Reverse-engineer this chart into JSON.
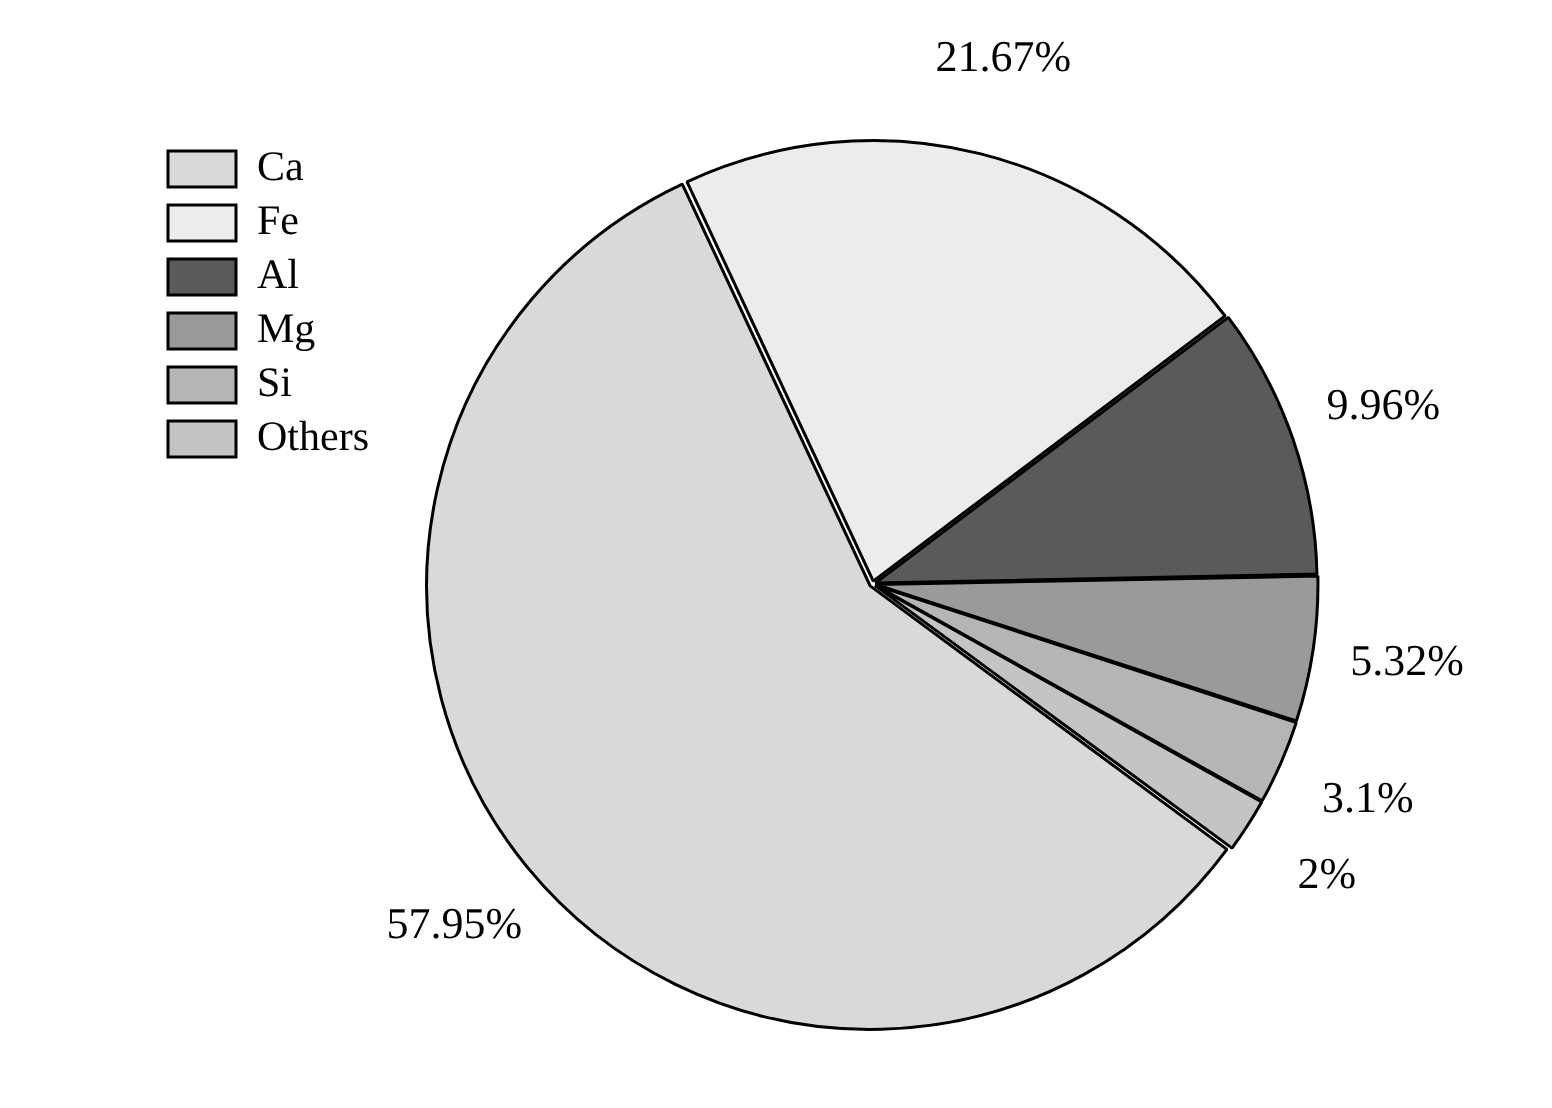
{
  "chart_data": {
    "type": "pie",
    "categories": [
      "Ca",
      "Fe",
      "Al",
      "Mg",
      "Si",
      "Others"
    ],
    "values": [
      57.95,
      21.67,
      9.96,
      5.32,
      3.1,
      2
    ],
    "colors": [
      "#d9d9d9",
      "#ececec",
      "#5a5a5a",
      "#9a9a9a",
      "#b5b5b5",
      "#c4c4c4"
    ],
    "value_labels": [
      "57.95%",
      "21.67%",
      "9.96%",
      "5.32%",
      "3.1%",
      "2%"
    ],
    "legend": "top left"
  }
}
